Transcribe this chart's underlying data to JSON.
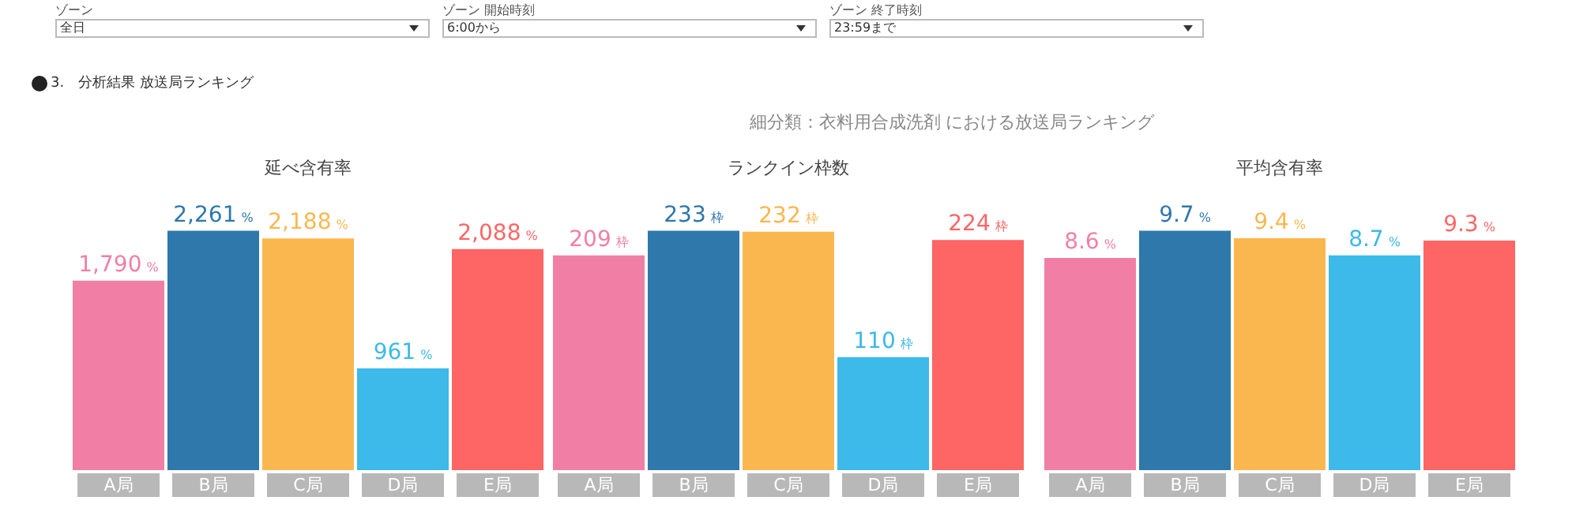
{
  "chart_data": [
    {
      "type": "other",
      "title": "3.　分析結果 放送局ランキング",
      "subtitle": "細分類：衣料用合成洗剤 における放送局ランキング",
      "annotations": [
        "ゾーン",
        "全日",
        "ゾーン 開始時刻",
        "6:00から",
        "ゾーン 終了時刻",
        "23:59まで"
      ]
    },
    {
      "type": "bar",
      "title": "延べ含有率",
      "categories": [
        "A局",
        "B局",
        "C局",
        "D局",
        "E局"
      ],
      "values": [
        1790,
        2261,
        2188,
        961,
        2088
      ],
      "colors": [
        "#f17fa5",
        "#2e78ac",
        "#fbb74f",
        "#3db9ea",
        "#fe6565"
      ],
      "value_labels": [
        "1,790 %",
        "2,261 %",
        "2,188 %",
        "961 %",
        "2,088 %"
      ]
    },
    {
      "type": "bar",
      "title": "ランクイン枠数",
      "categories": [
        "A局",
        "B局",
        "C局",
        "D局",
        "E局"
      ],
      "values": [
        209,
        233,
        232,
        110,
        224
      ],
      "colors": [
        "#f17fa5",
        "#2e78ac",
        "#fbb74f",
        "#3db9ea",
        "#fe6565"
      ],
      "value_labels": [
        "209 枠",
        "233 枠",
        "232 枠",
        "110 枠",
        "224 枠"
      ]
    },
    {
      "type": "bar",
      "title": "平均含有率",
      "categories": [
        "A局",
        "B局",
        "C局",
        "D局",
        "E局"
      ],
      "values": [
        8.6,
        9.7,
        9.4,
        8.7,
        9.3
      ],
      "colors": [
        "#f17fa5",
        "#2e78ac",
        "#fbb74f",
        "#3db9ea",
        "#fe6565"
      ],
      "value_labels": [
        "8.6 %",
        "9.7 %",
        "9.4 %",
        "8.7 %",
        "9.3 %"
      ]
    }
  ]
}
